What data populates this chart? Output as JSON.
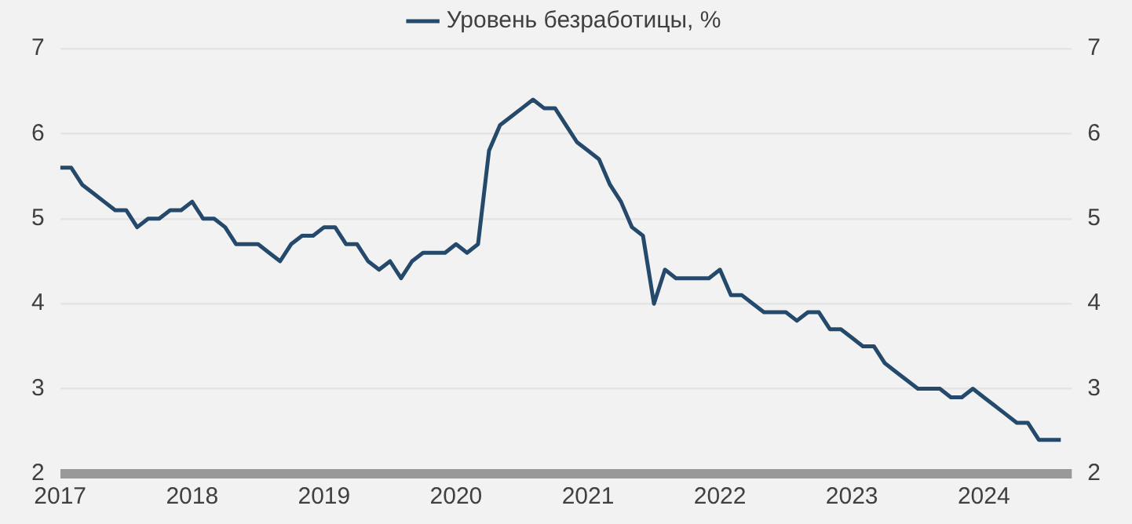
{
  "chart_data": {
    "type": "line",
    "x": [
      "2017-01",
      "2017-02",
      "2017-03",
      "2017-04",
      "2017-05",
      "2017-06",
      "2017-07",
      "2017-08",
      "2017-09",
      "2017-10",
      "2017-11",
      "2017-12",
      "2018-01",
      "2018-02",
      "2018-03",
      "2018-04",
      "2018-05",
      "2018-06",
      "2018-07",
      "2018-08",
      "2018-09",
      "2018-10",
      "2018-11",
      "2018-12",
      "2019-01",
      "2019-02",
      "2019-03",
      "2019-04",
      "2019-05",
      "2019-06",
      "2019-07",
      "2019-08",
      "2019-09",
      "2019-10",
      "2019-11",
      "2019-12",
      "2020-01",
      "2020-02",
      "2020-03",
      "2020-04",
      "2020-05",
      "2020-06",
      "2020-07",
      "2020-08",
      "2020-09",
      "2020-10",
      "2020-11",
      "2020-12",
      "2021-01",
      "2021-02",
      "2021-03",
      "2021-04",
      "2021-05",
      "2021-06",
      "2021-07",
      "2021-08",
      "2021-09",
      "2021-10",
      "2021-11",
      "2021-12",
      "2022-01",
      "2022-02",
      "2022-03",
      "2022-04",
      "2022-05",
      "2022-06",
      "2022-07",
      "2022-08",
      "2022-09",
      "2022-10",
      "2022-11",
      "2022-12",
      "2023-01",
      "2023-02",
      "2023-03",
      "2023-04",
      "2023-05",
      "2023-06",
      "2023-07",
      "2023-08",
      "2023-09",
      "2023-10",
      "2023-11",
      "2023-12",
      "2024-01",
      "2024-02",
      "2024-03",
      "2024-04",
      "2024-05",
      "2024-06",
      "2024-07",
      "2024-08"
    ],
    "series": [
      {
        "name": "Уровень безработицы, %",
        "color": "#25496b",
        "values": [
          5.6,
          5.6,
          5.4,
          5.3,
          5.2,
          5.1,
          5.1,
          4.9,
          5.0,
          5.0,
          5.1,
          5.1,
          5.2,
          5.0,
          5.0,
          4.9,
          4.7,
          4.7,
          4.7,
          4.6,
          4.5,
          4.7,
          4.8,
          4.8,
          4.9,
          4.9,
          4.7,
          4.7,
          4.5,
          4.4,
          4.5,
          4.3,
          4.5,
          4.6,
          4.6,
          4.6,
          4.7,
          4.6,
          4.7,
          5.8,
          6.1,
          6.2,
          6.3,
          6.4,
          6.3,
          6.3,
          6.1,
          5.9,
          5.8,
          5.7,
          5.4,
          5.2,
          4.9,
          4.8,
          4.0,
          4.4,
          4.3,
          4.3,
          4.3,
          4.3,
          4.4,
          4.1,
          4.1,
          4.0,
          3.9,
          3.9,
          3.9,
          3.8,
          3.9,
          3.9,
          3.7,
          3.7,
          3.6,
          3.5,
          3.5,
          3.3,
          3.2,
          3.1,
          3.0,
          3.0,
          3.0,
          2.9,
          2.9,
          3.0,
          2.9,
          2.8,
          2.7,
          2.6,
          2.6,
          2.4,
          2.4,
          2.4
        ]
      }
    ],
    "xlim": [
      "2017-01",
      "2024-09"
    ],
    "xticks": [
      "2017",
      "2018",
      "2019",
      "2020",
      "2021",
      "2022",
      "2023",
      "2024"
    ],
    "ylim": [
      2,
      7
    ],
    "yticks": [
      2,
      3,
      4,
      5,
      6,
      7
    ],
    "y2lim": [
      2,
      7
    ],
    "y2ticks": [
      2,
      3,
      4,
      5,
      6,
      7
    ],
    "grid": "y",
    "legend": "top",
    "marker": "none",
    "line_style": "solid"
  }
}
